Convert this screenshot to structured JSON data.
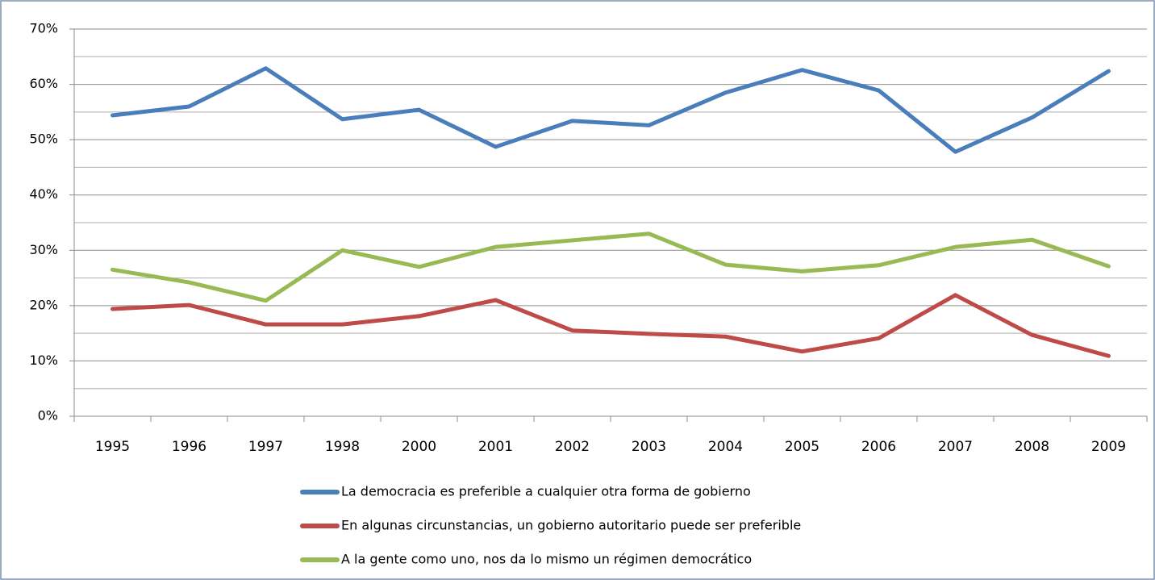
{
  "chart_data": {
    "type": "line",
    "categories": [
      "1995",
      "1996",
      "1997",
      "1998",
      "2000",
      "2001",
      "2002",
      "2003",
      "2004",
      "2005",
      "2006",
      "2007",
      "2008",
      "2009"
    ],
    "series": [
      {
        "name": "La democracia es preferible a cualquier otra forma de gobierno",
        "color": "#4a7ebb",
        "values": [
          54.4,
          56.0,
          62.9,
          53.7,
          55.4,
          48.7,
          53.4,
          52.6,
          58.5,
          62.6,
          58.9,
          47.8,
          54.0,
          62.4
        ]
      },
      {
        "name": "En algunas circunstancias, un gobierno autoritario puede ser preferible",
        "color": "#be4b48",
        "values": [
          19.4,
          20.1,
          16.6,
          16.6,
          18.1,
          21.0,
          15.5,
          14.9,
          14.4,
          11.7,
          14.1,
          21.9,
          14.7,
          10.9
        ]
      },
      {
        "name": "A la gente como uno, nos da lo mismo un régimen democrático",
        "color": "#98b954",
        "values": [
          26.5,
          24.2,
          20.9,
          30.0,
          27.0,
          30.6,
          31.8,
          33.0,
          27.4,
          26.2,
          27.3,
          30.6,
          31.9,
          27.1
        ]
      }
    ],
    "ylim": [
      0,
      70
    ],
    "yticks": [
      {
        "value": 0,
        "label": "0%"
      },
      {
        "value": 10,
        "label": "10%"
      },
      {
        "value": 20,
        "label": "20%"
      },
      {
        "value": 30,
        "label": "30%"
      },
      {
        "value": 40,
        "label": "40%"
      },
      {
        "value": 50,
        "label": "50%"
      },
      {
        "value": 60,
        "label": "60%"
      },
      {
        "value": 70,
        "label": "70%"
      }
    ],
    "yminorticks": [
      5,
      15,
      25,
      35,
      45,
      55,
      65
    ],
    "grid": true,
    "legend": "bottom"
  }
}
